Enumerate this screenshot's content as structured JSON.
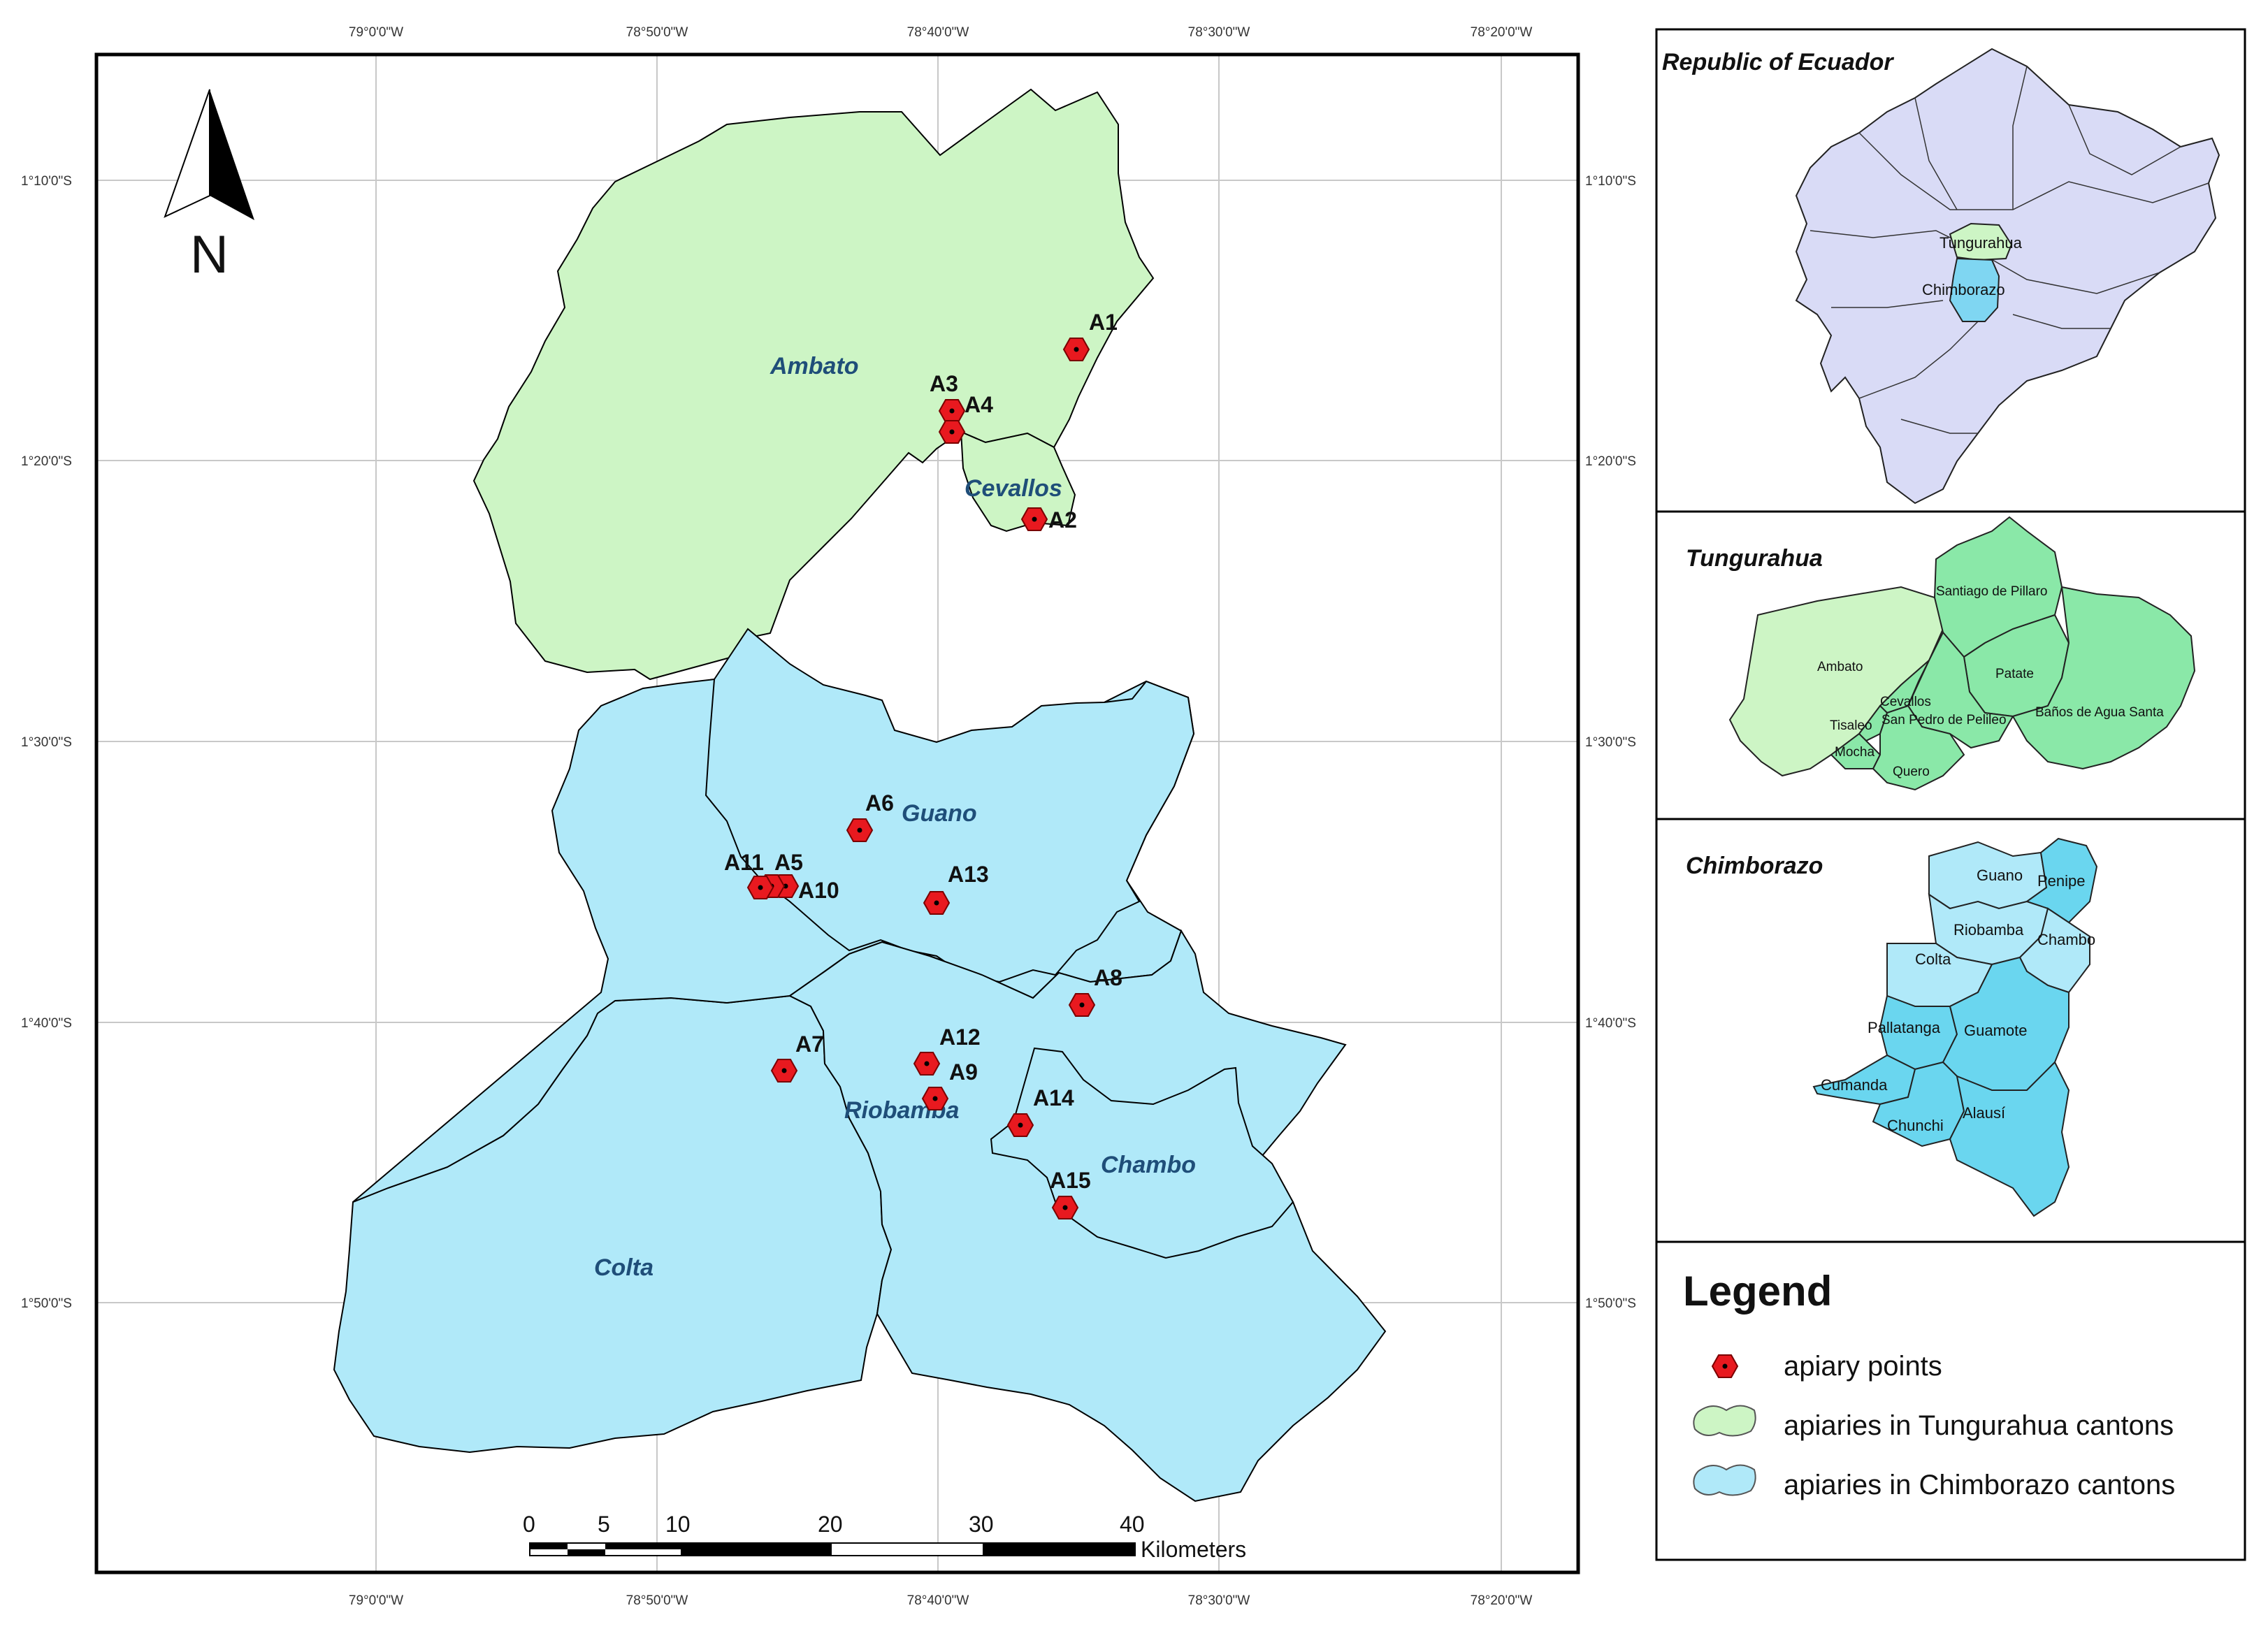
{
  "main_map": {
    "top_longitude_labels": [
      "79°0'0\"W",
      "78°50'0\"W",
      "78°40'0\"W",
      "78°30'0\"W",
      "78°20'0\"W"
    ],
    "bottom_longitude_labels": [
      "79°0'0\"W",
      "78°50'0\"W",
      "78°40'0\"W",
      "78°30'0\"W",
      "78°20'0\"W"
    ],
    "left_latitude_labels": [
      "1°10'0\"S",
      "1°20'0\"S",
      "1°30'0\"S",
      "1°40'0\"S",
      "1°50'0\"S"
    ],
    "right_latitude_labels": [
      "1°10'0\"S",
      "1°20'0\"S",
      "1°30'0\"S",
      "1°40'0\"S",
      "1°50'0\"S"
    ],
    "cantons": {
      "ambato": "Ambato",
      "cevallos": "Cevallos",
      "guano": "Guano",
      "riobamba": "Riobamba",
      "chambo": "Chambo",
      "colta": "Colta"
    },
    "apiary_points": [
      "A1",
      "A2",
      "A3",
      "A4",
      "A5",
      "A6",
      "A7",
      "A8",
      "A9",
      "A10",
      "A11",
      "A12",
      "A13",
      "A14",
      "A15"
    ],
    "north_arrow": {
      "label": "N"
    },
    "scale_bar": {
      "ticks": [
        "0",
        "5",
        "10",
        "20",
        "30",
        "40"
      ],
      "unit": "Kilometers"
    }
  },
  "insets": {
    "ecuador": {
      "title": "Republic of Ecuador",
      "labels": {
        "tungurahua": "Tungurahua",
        "chimborazo": "Chimborazo"
      }
    },
    "tungurahua": {
      "title": "Tungurahua",
      "labels": {
        "santiago": "Santiago de Pillaro",
        "ambato": "Ambato",
        "patate": "Patate",
        "cevallos": "Cevallos",
        "tisaleo": "Tisaleo",
        "san_pedro": "San Pedro de Pelileo",
        "banos": "Baños de Agua Santa",
        "mocha": "Mocha",
        "quero": "Quero"
      }
    },
    "chimborazo": {
      "title": "Chimborazo",
      "labels": {
        "guano": "Guano",
        "penipe": "Penipe",
        "riobamba": "Riobamba",
        "chambo": "Chambo",
        "colta": "Colta",
        "pallatanga": "Pallatanga",
        "guamote": "Guamote",
        "cumanda": "Cumanda",
        "chunchi": "Chunchi",
        "alausi": "Alausí"
      }
    }
  },
  "legend": {
    "title": "Legend",
    "items": {
      "points": "apiary points",
      "tungurahua": "apiaries in Tungurahua cantons",
      "chimborazo": "apiaries in Chimborazo cantons"
    }
  },
  "colors": {
    "tungurahua_fill": "#cdf5c5",
    "chimborazo_fill": "#b0e9f9",
    "point_fill": "#e8191f",
    "ecuador_fill": "#d9dbf6",
    "tungurahua_dark": "#8ae8a8",
    "chimborazo_dark": "#6ad6ef"
  }
}
